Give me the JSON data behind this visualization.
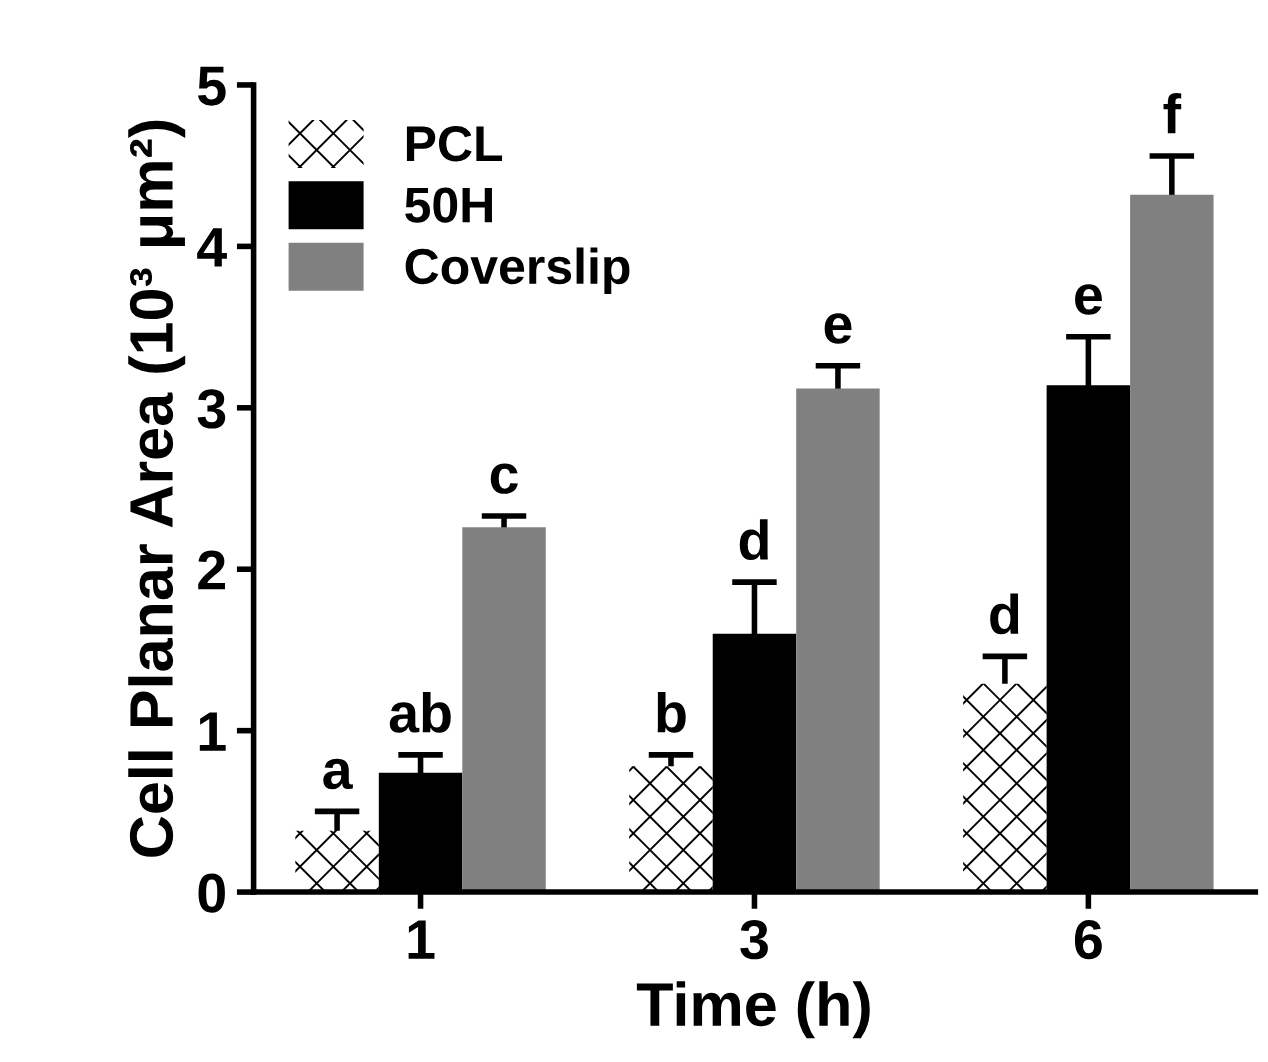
{
  "chart_data": {
    "type": "bar",
    "xlabel": "Time (h)",
    "ylabel": "Cell Planar Area (10³ μm²)",
    "categories": [
      "1",
      "3",
      "6"
    ],
    "series": [
      {
        "name": "PCL",
        "color": "#ffffff",
        "values": [
          0.38,
          0.78,
          1.29
        ],
        "errors": [
          0.12,
          0.07,
          0.17
        ]
      },
      {
        "name": "50H",
        "color": "#000000",
        "values": [
          0.74,
          1.6,
          3.14
        ],
        "errors": [
          0.11,
          0.32,
          0.3
        ]
      },
      {
        "name": "Coverslip",
        "color": "#808080",
        "values": [
          2.26,
          3.12,
          4.32
        ],
        "errors": [
          0.07,
          0.14,
          0.24
        ]
      }
    ],
    "annotations": [
      "a",
      {
        "text": "ab",
        "x": "1",
        "y": 0.85
      },
      "c",
      "b",
      {
        "text": "d",
        "x": "3",
        "y": 1.92
      },
      "e",
      "d",
      {
        "text": "e",
        "x": "6",
        "y": 3.44
      },
      "f"
    ],
    "ylim": [
      0,
      5
    ],
    "yticks": [
      0,
      1,
      2,
      3,
      4,
      5
    ],
    "grid": false,
    "legend": "top left"
  }
}
